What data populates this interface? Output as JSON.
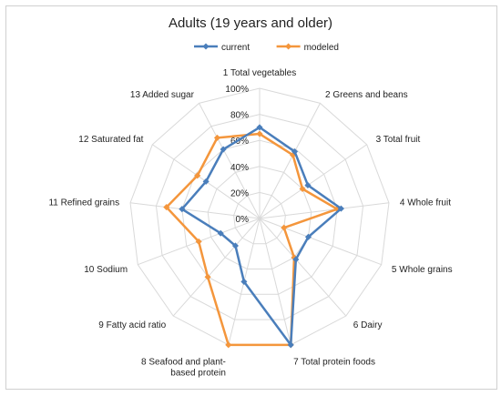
{
  "chart_data": {
    "type": "radar",
    "title": "Adults (19 years and older)",
    "categories": [
      "1 Total vegetables",
      "2 Greens and beans",
      "3 Total fruit",
      "4 Whole fruit",
      "5 Whole grains",
      "6 Dairy",
      "7 Total protein foods",
      "8 Seafood and plant-based protein",
      "9 Fatty acid ratio",
      "10 Sodium",
      "11 Refined grains",
      "12 Saturated fat",
      "13 Added sugar"
    ],
    "category_display": [
      [
        "1 Total vegetables"
      ],
      [
        "2 Greens and beans"
      ],
      [
        "3 Total fruit"
      ],
      [
        "4 Whole fruit"
      ],
      [
        "5 Whole grains"
      ],
      [
        "6 Dairy"
      ],
      [
        "7 Total protein foods"
      ],
      [
        "8 Seafood and plant-",
        "based protein"
      ],
      [
        "9 Fatty acid ratio"
      ],
      [
        "10 Sodium"
      ],
      [
        "11 Refined grains"
      ],
      [
        "12 Saturated fat"
      ],
      [
        "13 Added sugar"
      ]
    ],
    "series": [
      {
        "name": "current",
        "color": "#4a7ebb",
        "values": [
          70,
          58,
          45,
          63,
          40,
          42,
          100,
          50,
          28,
          32,
          60,
          50,
          60
        ]
      },
      {
        "name": "modeled",
        "color": "#f4963c",
        "values": [
          65,
          55,
          40,
          60,
          20,
          40,
          100,
          100,
          60,
          50,
          72,
          58,
          70
        ]
      }
    ],
    "r_ticks": [
      "0%",
      "20%",
      "40%",
      "60%",
      "80%",
      "100%"
    ],
    "r_max": 100,
    "legend_position": "top-center",
    "grid": true
  }
}
